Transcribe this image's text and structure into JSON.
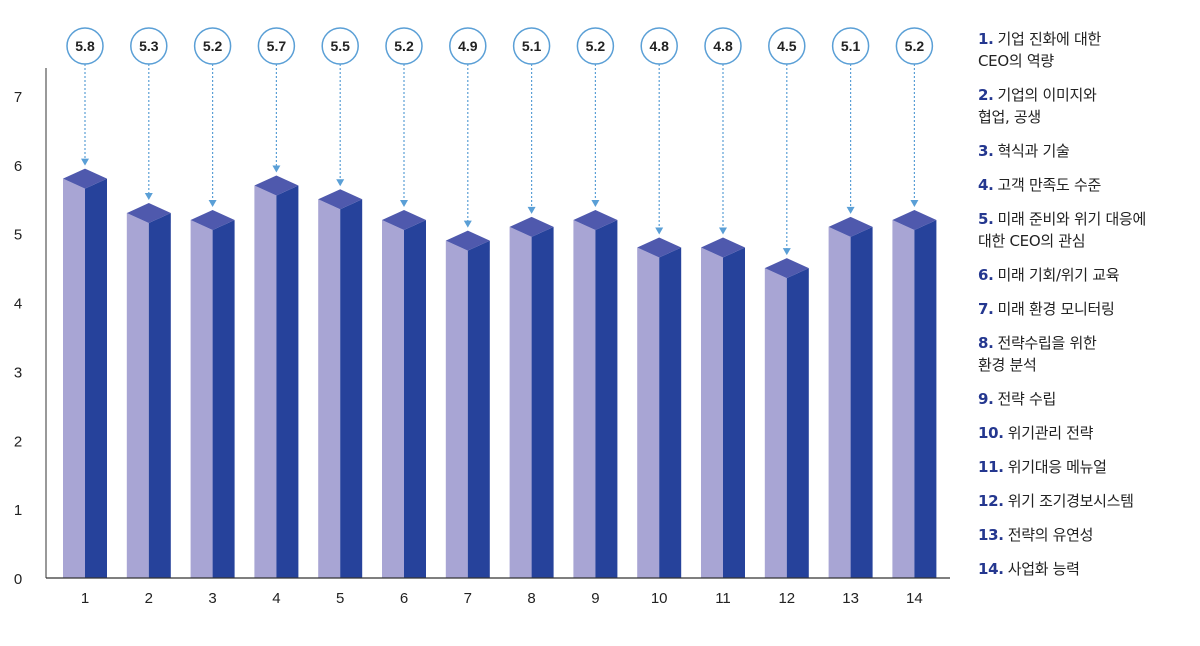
{
  "chart_data": {
    "type": "bar",
    "categories": [
      "1",
      "2",
      "3",
      "4",
      "5",
      "6",
      "7",
      "8",
      "9",
      "10",
      "11",
      "12",
      "13",
      "14"
    ],
    "values": [
      5.8,
      5.3,
      5.2,
      5.7,
      5.5,
      5.2,
      4.9,
      5.1,
      5.2,
      4.8,
      4.8,
      4.5,
      5.1,
      5.2
    ],
    "value_labels": [
      "5.8",
      "5.3",
      "5.2",
      "5.7",
      "5.5",
      "5.2",
      "4.9",
      "5.1",
      "5.2",
      "4.8",
      "4.8",
      "4.5",
      "5.1",
      "5.2"
    ],
    "yticks": [
      "0",
      "1",
      "2",
      "3",
      "4",
      "5",
      "6",
      "7"
    ],
    "ylim": [
      0,
      7
    ],
    "grid": false,
    "colors": {
      "front": "#a8a5d4",
      "side": "#26429b",
      "top": "#4f59ad",
      "bubble": "#5a9fd6",
      "axis": "#333333"
    }
  },
  "legend": {
    "items": [
      {
        "num": "1.",
        "text": "기업 진화에 대한\nCEO의 역량"
      },
      {
        "num": "2.",
        "text": "기업의 이미지와\n협업, 공생"
      },
      {
        "num": "3.",
        "text": "혁식과 기술"
      },
      {
        "num": "4.",
        "text": "고객 만족도 수준"
      },
      {
        "num": "5.",
        "text": "미래 준비와 위기 대응에\n대한 CEO의 관심"
      },
      {
        "num": "6.",
        "text": "미래 기회/위기 교육"
      },
      {
        "num": "7.",
        "text": "미래 환경 모니터링"
      },
      {
        "num": "8.",
        "text": "전략수립을 위한\n환경 분석"
      },
      {
        "num": "9.",
        "text": "전략 수립"
      },
      {
        "num": "10.",
        "text": "위기관리 전략"
      },
      {
        "num": "11.",
        "text": "위기대응 메뉴얼"
      },
      {
        "num": "12.",
        "text": "위기 조기경보시스템"
      },
      {
        "num": "13.",
        "text": "전략의 유연성"
      },
      {
        "num": "14.",
        "text": "사업화 능력"
      }
    ]
  }
}
